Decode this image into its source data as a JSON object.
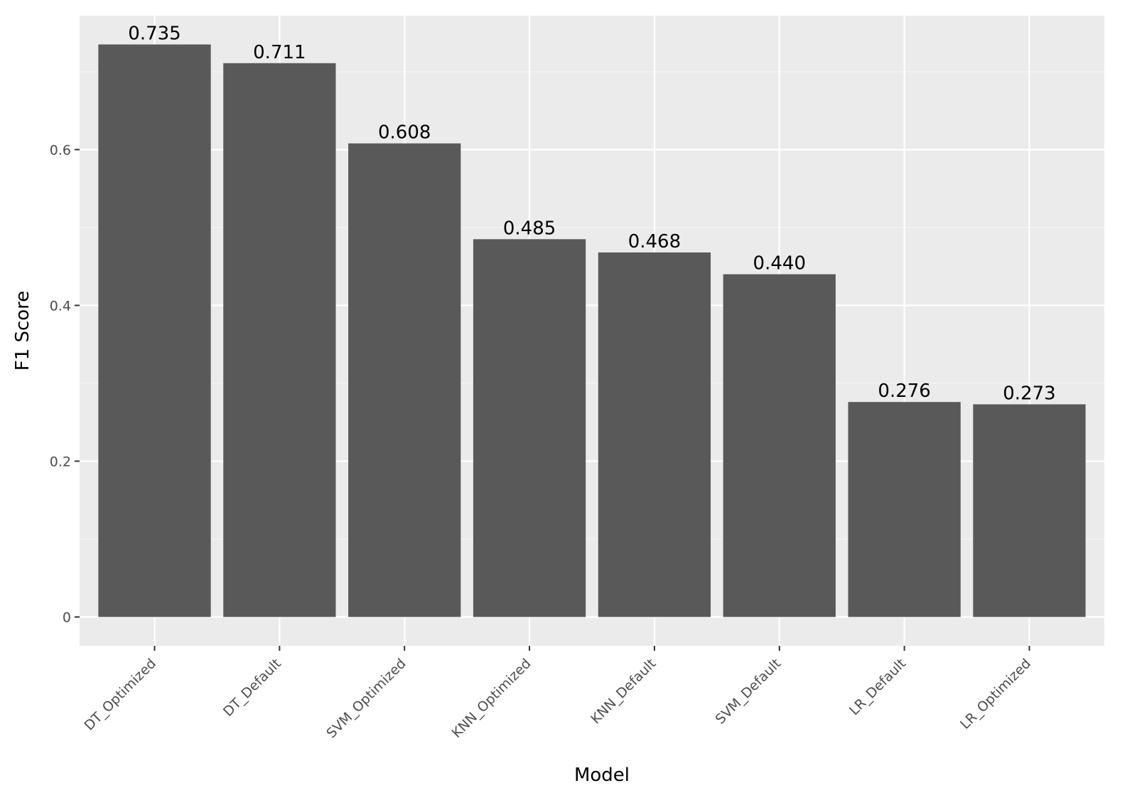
{
  "chart_data": {
    "type": "bar",
    "title": "",
    "xlabel": "Model",
    "ylabel": "F1 Score",
    "categories": [
      "DT_Optimized",
      "DT_Default",
      "SVM_Optimized",
      "KNN_Optimized",
      "KNN_Default",
      "SVM_Default",
      "LR_Default",
      "LR_Optimized"
    ],
    "values": [
      0.735,
      0.711,
      0.608,
      0.485,
      0.468,
      0.44,
      0.276,
      0.273
    ],
    "value_labels": [
      "0.735",
      "0.711",
      "0.608",
      "0.485",
      "0.468",
      "0.440",
      "0.276",
      "0.273"
    ],
    "ylim": [
      -0.037,
      0.772
    ],
    "yticks": [
      0,
      0.2,
      0.4,
      0.6
    ],
    "ytick_labels": [
      "0",
      "0.2",
      "0.4",
      "0.6"
    ],
    "grid": true,
    "legend": "none",
    "colors": {
      "panel": "#ebebeb",
      "bar": "#595959",
      "grid_major": "#ffffff",
      "grid_minor": "#f5f5f5",
      "tick": "#333333"
    }
  }
}
